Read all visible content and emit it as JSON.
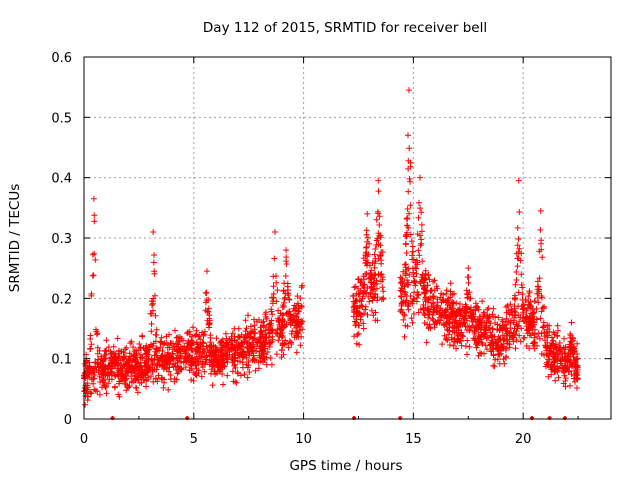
{
  "chart_data": {
    "type": "scatter",
    "title": "Day 112 of 2015, SRMTID for receiver bell",
    "xlabel": "GPS time / hours",
    "ylabel": "SRMTID / TECUs",
    "xlim": [
      0,
      24
    ],
    "ylim": [
      0,
      0.6
    ],
    "x_ticks": [
      0,
      5,
      10,
      15,
      20
    ],
    "x_tick_labels": [
      "0",
      "5",
      "10",
      "15",
      "20"
    ],
    "y_ticks": [
      0,
      0.1,
      0.2,
      0.3,
      0.4,
      0.5,
      0.6
    ],
    "y_tick_labels": [
      "0",
      "0.1",
      "0.2",
      "0.3",
      "0.4",
      "0.5",
      "0.6"
    ],
    "grid": true,
    "marker": "plus",
    "color": "#ff0000",
    "series": [
      {
        "name": "SRMTID",
        "profile": [
          {
            "x": 0.0,
            "y": 0.06
          },
          {
            "x": 1.0,
            "y": 0.09
          },
          {
            "x": 2.0,
            "y": 0.08
          },
          {
            "x": 3.0,
            "y": 0.095
          },
          {
            "x": 4.0,
            "y": 0.1
          },
          {
            "x": 5.0,
            "y": 0.11
          },
          {
            "x": 6.0,
            "y": 0.1
          },
          {
            "x": 7.0,
            "y": 0.11
          },
          {
            "x": 8.0,
            "y": 0.125
          },
          {
            "x": 9.0,
            "y": 0.15
          },
          {
            "x": 9.9,
            "y": 0.17
          },
          {
            "x": 12.3,
            "y": 0.18
          },
          {
            "x": 13.0,
            "y": 0.21
          },
          {
            "x": 13.6,
            "y": 0.22
          },
          {
            "x": 14.4,
            "y": 0.2
          },
          {
            "x": 15.0,
            "y": 0.22
          },
          {
            "x": 16.0,
            "y": 0.18
          },
          {
            "x": 17.0,
            "y": 0.16
          },
          {
            "x": 18.0,
            "y": 0.15
          },
          {
            "x": 19.0,
            "y": 0.13
          },
          {
            "x": 19.7,
            "y": 0.17
          },
          {
            "x": 20.5,
            "y": 0.16
          },
          {
            "x": 21.0,
            "y": 0.12
          },
          {
            "x": 22.0,
            "y": 0.09
          },
          {
            "x": 22.5,
            "y": 0.08
          }
        ],
        "coverage": [
          [
            0.0,
            9.95
          ],
          [
            12.25,
            13.65
          ],
          [
            14.4,
            22.5
          ]
        ],
        "peaks": [
          {
            "x": 0.45,
            "y": 0.365
          },
          {
            "x": 3.15,
            "y": 0.31
          },
          {
            "x": 5.6,
            "y": 0.245
          },
          {
            "x": 8.7,
            "y": 0.31
          },
          {
            "x": 9.2,
            "y": 0.28
          },
          {
            "x": 12.9,
            "y": 0.34
          },
          {
            "x": 13.4,
            "y": 0.395
          },
          {
            "x": 14.8,
            "y": 0.545
          },
          {
            "x": 15.3,
            "y": 0.4
          },
          {
            "x": 17.5,
            "y": 0.25
          },
          {
            "x": 19.8,
            "y": 0.395
          },
          {
            "x": 20.8,
            "y": 0.345
          },
          {
            "x": 22.2,
            "y": 0.16
          }
        ],
        "spread": 0.045,
        "point_count": 2600
      }
    ],
    "gap_markers_x": [
      1.3,
      4.7,
      12.3,
      14.4,
      20.4,
      21.2,
      21.9
    ]
  }
}
